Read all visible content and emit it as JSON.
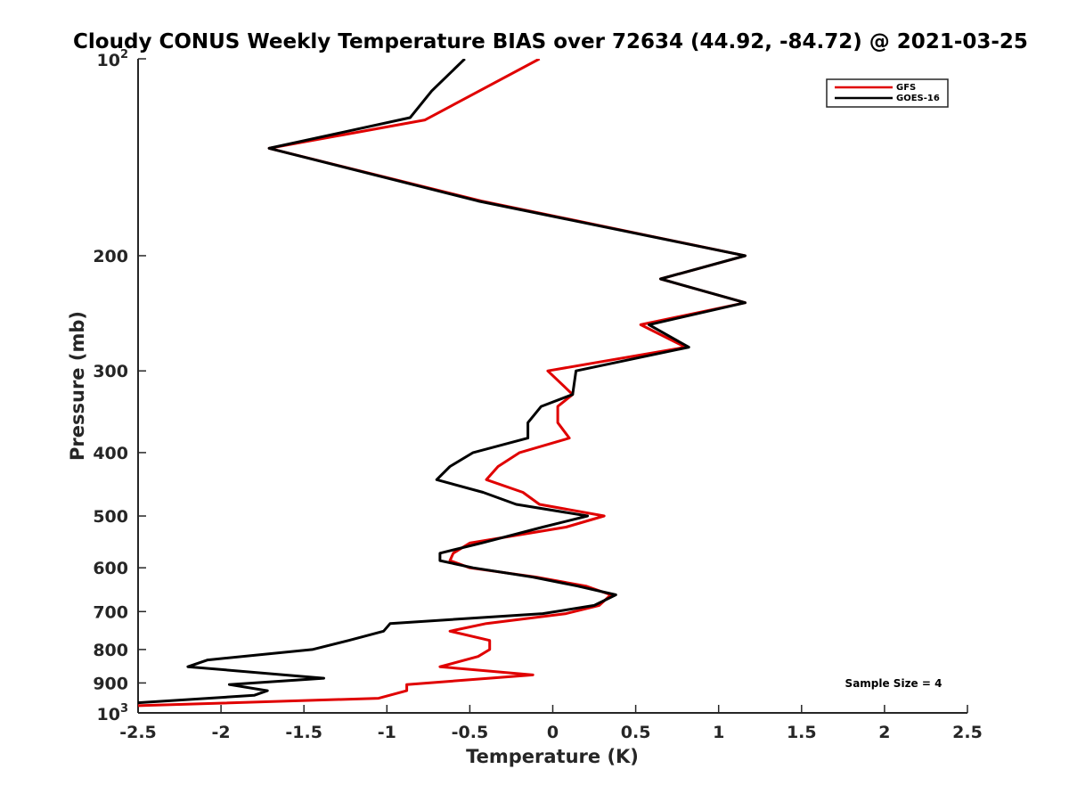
{
  "chart_data": {
    "type": "line",
    "title": "Cloudy CONUS Weekly Temperature BIAS over 72634 (44.92, -84.72) @ 2021-03-25",
    "xlabel": "Temperature (K)",
    "ylabel": "Pressure (mb)",
    "xlim": [
      -2.5,
      2.5
    ],
    "ylim": [
      100,
      1000
    ],
    "yscale": "log",
    "yreversed": true,
    "x_ticks": [
      -2.5,
      -2,
      -1.5,
      -1,
      -0.5,
      0,
      0.5,
      1,
      1.5,
      2,
      2.5
    ],
    "x_tick_labels": [
      "-2.5",
      "-2",
      "-1.5",
      "-1",
      "-0.5",
      "0",
      "0.5",
      "1",
      "1.5",
      "2",
      "2.5"
    ],
    "y_ticks": [
      200,
      300,
      400,
      500,
      600,
      700,
      800,
      900
    ],
    "y_tick_labels": [
      "200",
      "300",
      "400",
      "500",
      "600",
      "700",
      "800",
      "900"
    ],
    "y_top_label": {
      "base": "10",
      "exp": "2"
    },
    "y_bottom_label": {
      "base": "10",
      "exp": "3"
    },
    "grid": false,
    "legend_position": "top-right",
    "annotation": "Sample Size = 4",
    "series": [
      {
        "name": "GFS",
        "color": "#e00000",
        "points": [
          [
            -0.08,
            100
          ],
          [
            -0.77,
            124
          ],
          [
            -1.71,
            137
          ],
          [
            -0.43,
            165
          ],
          [
            1.16,
            200
          ],
          [
            0.65,
            217
          ],
          [
            1.16,
            236
          ],
          [
            0.53,
            255
          ],
          [
            0.8,
            276
          ],
          [
            -0.03,
            300
          ],
          [
            0.12,
            326
          ],
          [
            0.03,
            340
          ],
          [
            0.03,
            360
          ],
          [
            0.1,
            380
          ],
          [
            -0.2,
            400
          ],
          [
            -0.33,
            420
          ],
          [
            -0.4,
            440
          ],
          [
            -0.18,
            460
          ],
          [
            -0.08,
            480
          ],
          [
            0.31,
            500
          ],
          [
            0.08,
            520
          ],
          [
            -0.5,
            550
          ],
          [
            -0.6,
            570
          ],
          [
            -0.62,
            585
          ],
          [
            -0.5,
            600
          ],
          [
            -0.1,
            620
          ],
          [
            0.2,
            640
          ],
          [
            0.35,
            660
          ],
          [
            0.28,
            685
          ],
          [
            0.08,
            705
          ],
          [
            -0.4,
            730
          ],
          [
            -0.62,
            750
          ],
          [
            -0.38,
            775
          ],
          [
            -0.38,
            800
          ],
          [
            -0.45,
            820
          ],
          [
            -0.68,
            850
          ],
          [
            -0.12,
            875
          ],
          [
            -0.88,
            905
          ],
          [
            -0.88,
            925
          ],
          [
            -1.05,
            950
          ],
          [
            -2.5,
            975
          ]
        ]
      },
      {
        "name": "GOES-16",
        "color": "#000000",
        "points": [
          [
            -0.53,
            100
          ],
          [
            -0.73,
            112
          ],
          [
            -0.86,
            123
          ],
          [
            -1.71,
            137
          ],
          [
            -0.45,
            165
          ],
          [
            1.16,
            200
          ],
          [
            0.65,
            217
          ],
          [
            1.16,
            236
          ],
          [
            0.58,
            255
          ],
          [
            0.82,
            276
          ],
          [
            0.14,
            300
          ],
          [
            0.12,
            326
          ],
          [
            -0.07,
            340
          ],
          [
            -0.15,
            360
          ],
          [
            -0.15,
            380
          ],
          [
            -0.48,
            400
          ],
          [
            -0.62,
            420
          ],
          [
            -0.7,
            440
          ],
          [
            -0.42,
            460
          ],
          [
            -0.22,
            480
          ],
          [
            0.21,
            500
          ],
          [
            -0.06,
            520
          ],
          [
            -0.43,
            550
          ],
          [
            -0.68,
            570
          ],
          [
            -0.68,
            585
          ],
          [
            -0.48,
            600
          ],
          [
            -0.12,
            620
          ],
          [
            0.15,
            640
          ],
          [
            0.38,
            660
          ],
          [
            0.25,
            685
          ],
          [
            -0.06,
            705
          ],
          [
            -0.98,
            730
          ],
          [
            -1.02,
            750
          ],
          [
            -1.23,
            775
          ],
          [
            -1.45,
            800
          ],
          [
            -2.08,
            830
          ],
          [
            -2.2,
            850
          ],
          [
            -1.38,
            885
          ],
          [
            -1.95,
            905
          ],
          [
            -1.72,
            925
          ],
          [
            -1.8,
            940
          ],
          [
            -2.5,
            965
          ]
        ]
      }
    ]
  }
}
